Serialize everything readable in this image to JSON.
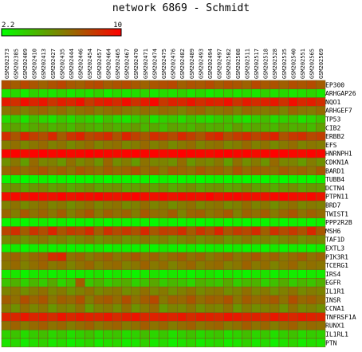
{
  "chart_data": {
    "type": "heatmap",
    "title": "network 6869 - Schmidt",
    "color_scale": {
      "min": 2.2,
      "max": 10,
      "min_label": "2.2",
      "max_label": "10",
      "low_color": "#00ff00",
      "high_color": "#ff0000"
    },
    "columns": [
      "GSM202373",
      "GSM202385",
      "GSM202409",
      "GSM202410",
      "GSM202413",
      "GSM202427",
      "GSM202435",
      "GSM202444",
      "GSM202446",
      "GSM202454",
      "GSM202457",
      "GSM202464",
      "GSM202465",
      "GSM202467",
      "GSM202470",
      "GSM202471",
      "GSM202474",
      "GSM202475",
      "GSM202476",
      "GSM202482",
      "GSM202489",
      "GSM202493",
      "GSM202494",
      "GSM202497",
      "GSM202502",
      "GSM202508",
      "GSM202511",
      "GSM202517",
      "GSM202518",
      "GSM202528",
      "GSM202535",
      "GSM202540",
      "GSM202551",
      "GSM202565",
      "GSM202569"
    ],
    "rows": [
      "EP300",
      "ARHGAP26",
      "NQO1",
      "ARHGEF7",
      "TP53",
      "CIB2",
      "ERBB2",
      "EFS",
      "HNRNPH1",
      "CDKN1A",
      "BARD1",
      "TUBB4",
      "DCTN4",
      "PTPN11",
      "BRD7",
      "TWIST1",
      "PPP2R2B",
      "MSH6",
      "TAF1D",
      "EXTL3",
      "PIK3R1",
      "TCERG1",
      "IRS4",
      "EGFR",
      "IL1R1",
      "INSR",
      "CCNA1",
      "TNFRSF1A",
      "RUNX1",
      "IL1RL1",
      "PTN"
    ],
    "values": [
      [
        7.6,
        7.2,
        7.8,
        7.4,
        7.0,
        7.5,
        7.9,
        7.3,
        7.1,
        7.6,
        7.8,
        7.2,
        7.5,
        7.7,
        7.3,
        7.0,
        7.4,
        7.6,
        7.8,
        7.1,
        7.5,
        7.3,
        7.7,
        7.2,
        7.6,
        7.4,
        7.0,
        7.8,
        7.3,
        7.5,
        7.1,
        7.6,
        7.4,
        7.7,
        7.2
      ],
      [
        3.0,
        3.4,
        2.8,
        3.6,
        3.2,
        3.0,
        3.5,
        2.9,
        3.3,
        3.1,
        3.6,
        2.8,
        3.4,
        3.0,
        3.2,
        3.5,
        2.9,
        3.3,
        3.1,
        3.6,
        3.0,
        3.4,
        2.8,
        3.2,
        3.5,
        3.0,
        3.3,
        2.9,
        3.6,
        3.1,
        3.4,
        3.0,
        3.2,
        3.5,
        2.9
      ],
      [
        9.2,
        8.6,
        9.6,
        8.9,
        9.4,
        8.4,
        9.1,
        8.8,
        9.5,
        8.2,
        9.0,
        9.3,
        8.7,
        9.6,
        8.5,
        9.2,
        9.8,
        8.3,
        9.0,
        8.8,
        9.4,
        8.6,
        9.1,
        8.9,
        9.5,
        8.4,
        9.2,
        8.7,
        9.0,
        9.3,
        8.5,
        9.6,
        8.8,
        9.1,
        8.6
      ],
      [
        6.4,
        6.8,
        6.1,
        6.6,
        6.9,
        6.3,
        6.7,
        6.0,
        6.5,
        6.8,
        6.2,
        6.6,
        6.9,
        6.4,
        6.1,
        6.7,
        6.3,
        6.8,
        6.5,
        6.0,
        6.6,
        6.9,
        6.2,
        6.4,
        6.7,
        6.1,
        6.8,
        6.5,
        6.3,
        6.6,
        6.0,
        6.9,
        6.4,
        6.2,
        6.7
      ],
      [
        3.2,
        3.8,
        3.0,
        4.2,
        3.5,
        3.1,
        3.9,
        3.3,
        4.0,
        3.6,
        3.2,
        4.1,
        3.4,
        3.0,
        3.7,
        4.3,
        3.1,
        3.6,
        3.9,
        3.3,
        4.0,
        3.5,
        3.2,
        3.8,
        4.1,
        3.4,
        3.0,
        3.7,
        4.2,
        3.3,
        3.6,
        3.9,
        3.1,
        3.5,
        4.0
      ],
      [
        4.6,
        5.0,
        4.4,
        4.8,
        5.2,
        4.5,
        4.9,
        4.3,
        5.1,
        4.7,
        4.4,
        5.0,
        4.6,
        4.8,
        5.3,
        4.5,
        4.9,
        4.2,
        5.0,
        4.7,
        4.4,
        5.1,
        4.6,
        4.8,
        4.3,
        5.2,
        4.5,
        4.9,
        4.7,
        4.4,
        5.0,
        4.6,
        4.8,
        4.3,
        5.1
      ],
      [
        8.6,
        7.4,
        8.9,
        8.1,
        7.6,
        8.8,
        7.2,
        8.4,
        9.0,
        7.8,
        8.2,
        8.7,
        7.5,
        8.9,
        8.0,
        7.3,
        8.6,
        8.3,
        7.7,
        8.8,
        8.1,
        7.4,
        8.5,
        8.9,
        7.6,
        8.2,
        8.7,
        7.9,
        8.4,
        9.0,
        7.5,
        8.3,
        8.6,
        7.8,
        8.1
      ],
      [
        6.2,
        6.6,
        5.9,
        6.4,
        6.8,
        6.1,
        6.5,
        5.8,
        6.3,
        6.7,
        6.0,
        6.4,
        6.6,
        5.9,
        6.2,
        6.8,
        6.1,
        6.5,
        5.8,
        6.3,
        6.7,
        6.0,
        6.4,
        6.6,
        5.9,
        6.2,
        6.8,
        6.1,
        6.5,
        5.8,
        6.3,
        6.7,
        6.0,
        6.4,
        6.2
      ],
      [
        9.8,
        9.9,
        9.7,
        9.9,
        10.0,
        9.8,
        9.9,
        9.7,
        9.8,
        10.0,
        9.9,
        9.8,
        9.7,
        9.9,
        10.0,
        9.8,
        9.9,
        9.7,
        9.8,
        10.0,
        9.9,
        9.8,
        9.7,
        9.9,
        10.0,
        9.8,
        9.9,
        9.7,
        9.8,
        10.0,
        9.9,
        9.8,
        9.7,
        9.9,
        9.8
      ],
      [
        5.6,
        6.4,
        5.2,
        6.8,
        5.9,
        6.1,
        5.4,
        6.6,
        5.8,
        6.3,
        5.5,
        6.9,
        5.7,
        6.2,
        5.3,
        6.5,
        5.9,
        6.0,
        5.6,
        6.7,
        5.4,
        6.1,
        5.8,
        6.4,
        5.2,
        6.6,
        5.7,
        6.3,
        5.5,
        6.8,
        5.9,
        6.0,
        5.3,
        6.2,
        5.6
      ],
      [
        6.8,
        7.2,
        6.6,
        7.0,
        7.4,
        6.7,
        7.1,
        6.5,
        7.3,
        6.9,
        6.6,
        7.2,
        6.8,
        7.0,
        7.5,
        6.7,
        7.1,
        6.4,
        7.2,
        6.9,
        6.6,
        7.3,
        6.8,
        7.0,
        6.5,
        7.4,
        6.7,
        7.1,
        6.9,
        6.6,
        7.2,
        6.8,
        7.0,
        6.5,
        7.3
      ],
      [
        2.4,
        2.6,
        2.3,
        2.5,
        2.7,
        2.4,
        2.6,
        2.3,
        2.5,
        2.4,
        2.7,
        2.3,
        2.6,
        2.5,
        2.4,
        2.6,
        2.3,
        2.7,
        2.5,
        2.4,
        2.6,
        2.3,
        2.5,
        2.7,
        2.4,
        2.6,
        2.3,
        2.5,
        2.4,
        2.7,
        2.3,
        2.6,
        2.5,
        2.4,
        2.6
      ],
      [
        5.2,
        5.6,
        4.9,
        5.4,
        5.8,
        5.1,
        5.5,
        4.8,
        5.3,
        5.7,
        5.0,
        5.4,
        5.6,
        4.9,
        5.2,
        5.8,
        5.1,
        5.5,
        4.8,
        5.3,
        5.7,
        5.0,
        5.4,
        5.6,
        4.9,
        5.2,
        5.8,
        5.1,
        5.5,
        4.8,
        5.3,
        5.7,
        5.0,
        5.4,
        5.2
      ],
      [
        9.5,
        9.7,
        9.4,
        9.8,
        9.6,
        9.5,
        9.9,
        9.4,
        9.7,
        9.6,
        9.8,
        9.5,
        9.4,
        9.7,
        9.9,
        9.6,
        9.5,
        9.8,
        9.4,
        9.7,
        9.6,
        9.5,
        9.9,
        9.4,
        9.7,
        9.8,
        9.6,
        9.5,
        9.4,
        9.7,
        9.9,
        9.6,
        9.5,
        9.8,
        9.4
      ],
      [
        6.1,
        6.5,
        5.8,
        6.3,
        6.7,
        6.0,
        6.4,
        5.7,
        6.2,
        6.6,
        5.9,
        6.3,
        6.5,
        5.8,
        6.1,
        6.7,
        6.0,
        6.4,
        5.7,
        6.2,
        6.6,
        5.9,
        6.3,
        6.5,
        5.8,
        6.1,
        6.7,
        6.0,
        6.4,
        5.7,
        6.2,
        6.6,
        5.9,
        6.3,
        6.1
      ],
      [
        6.9,
        6.2,
        7.3,
        6.5,
        7.0,
        6.4,
        7.2,
        6.1,
        6.8,
        7.4,
        6.3,
        7.1,
        6.6,
        7.0,
        6.2,
        7.3,
        6.7,
        6.5,
        7.2,
        6.0,
        6.9,
        7.1,
        6.4,
        6.8,
        7.3,
        6.1,
        7.0,
        6.6,
        7.2,
        6.3,
        6.9,
        7.4,
        6.5,
        7.1,
        6.7
      ],
      [
        2.5,
        2.7,
        2.4,
        2.6,
        2.8,
        2.5,
        2.7,
        2.4,
        2.6,
        2.5,
        2.8,
        2.4,
        2.7,
        2.6,
        2.5,
        2.7,
        2.4,
        2.8,
        2.6,
        2.5,
        2.7,
        2.4,
        2.6,
        2.8,
        2.5,
        2.7,
        2.4,
        2.6,
        2.5,
        2.8,
        2.4,
        2.7,
        2.6,
        2.5,
        2.7
      ],
      [
        7.9,
        8.6,
        7.2,
        8.4,
        7.6,
        8.9,
        7.4,
        8.2,
        7.8,
        8.7,
        7.1,
        8.5,
        7.7,
        8.3,
        7.5,
        8.8,
        7.3,
        8.1,
        7.9,
        8.6,
        7.2,
        8.4,
        7.6,
        8.9,
        7.4,
        8.2,
        7.8,
        8.7,
        7.1,
        8.5,
        7.7,
        8.3,
        7.5,
        8.8,
        7.3
      ],
      [
        5.8,
        6.2,
        5.5,
        6.0,
        6.4,
        5.7,
        6.1,
        5.4,
        5.9,
        6.3,
        5.6,
        6.0,
        6.2,
        5.5,
        5.8,
        6.4,
        5.7,
        6.1,
        5.4,
        5.9,
        6.3,
        5.6,
        6.0,
        6.2,
        5.5,
        5.8,
        6.4,
        5.7,
        6.1,
        5.4,
        5.9,
        6.3,
        5.6,
        6.0,
        5.8
      ],
      [
        2.6,
        2.8,
        2.5,
        2.7,
        2.9,
        2.6,
        2.8,
        2.5,
        2.7,
        2.6,
        2.9,
        2.5,
        2.8,
        2.7,
        2.6,
        2.8,
        2.5,
        2.9,
        2.7,
        2.6,
        2.8,
        2.5,
        2.7,
        2.9,
        2.6,
        2.8,
        2.5,
        2.7,
        2.6,
        2.9,
        2.5,
        2.8,
        2.7,
        2.6,
        2.8
      ],
      [
        6.6,
        7.0,
        6.3,
        6.8,
        7.2,
        8.6,
        8.9,
        6.5,
        6.9,
        6.2,
        6.7,
        7.1,
        6.4,
        6.8,
        7.3,
        6.6,
        7.0,
        6.3,
        6.8,
        7.2,
        6.5,
        6.9,
        6.2,
        6.7,
        7.1,
        6.4,
        6.8,
        7.3,
        6.6,
        7.0,
        6.3,
        6.8,
        7.2,
        6.5,
        6.9
      ],
      [
        6.4,
        6.8,
        6.1,
        6.6,
        7.0,
        6.3,
        6.7,
        6.0,
        6.5,
        6.9,
        6.2,
        6.6,
        6.8,
        6.1,
        6.4,
        7.0,
        6.3,
        6.7,
        6.0,
        6.5,
        6.9,
        6.2,
        6.6,
        6.8,
        6.1,
        6.4,
        7.0,
        6.3,
        6.7,
        6.0,
        6.5,
        6.9,
        6.2,
        6.6,
        6.4
      ],
      [
        2.8,
        3.0,
        2.6,
        2.9,
        3.1,
        2.7,
        3.0,
        2.6,
        2.8,
        2.9,
        3.1,
        2.7,
        3.0,
        2.8,
        2.6,
        2.9,
        3.1,
        2.7,
        3.0,
        2.8,
        2.6,
        2.9,
        3.1,
        2.7,
        3.0,
        2.8,
        2.6,
        2.9,
        3.1,
        2.7,
        3.0,
        2.8,
        2.6,
        2.9,
        2.8
      ],
      [
        4.0,
        4.6,
        3.6,
        4.4,
        3.8,
        4.8,
        3.5,
        4.2,
        7.2,
        3.9,
        4.5,
        3.7,
        4.3,
        4.7,
        3.6,
        4.1,
        4.9,
        3.8,
        4.4,
        4.0,
        3.5,
        4.6,
        4.2,
        3.9,
        4.8,
        3.7,
        4.3,
        4.5,
        3.6,
        4.1,
        4.7,
        3.8,
        4.4,
        4.0,
        4.6
      ],
      [
        6.0,
        6.4,
        5.7,
        6.2,
        6.6,
        5.9,
        6.3,
        5.6,
        6.1,
        6.5,
        5.8,
        6.2,
        6.4,
        5.7,
        6.0,
        6.6,
        5.9,
        6.3,
        5.6,
        6.1,
        6.5,
        5.8,
        6.2,
        6.4,
        5.7,
        6.0,
        6.6,
        5.9,
        6.3,
        5.6,
        6.1,
        6.5,
        5.8,
        6.2,
        6.0
      ],
      [
        7.2,
        6.6,
        7.6,
        6.9,
        7.4,
        6.4,
        7.1,
        6.8,
        7.5,
        6.2,
        7.0,
        7.3,
        6.7,
        7.6,
        6.5,
        7.2,
        7.8,
        6.3,
        7.0,
        6.8,
        7.4,
        6.6,
        7.1,
        6.9,
        7.5,
        6.4,
        7.2,
        6.7,
        7.0,
        7.3,
        6.5,
        7.6,
        6.8,
        7.1,
        6.6
      ],
      [
        6.2,
        5.6,
        6.6,
        5.9,
        6.4,
        5.4,
        6.1,
        5.8,
        6.5,
        5.2,
        6.0,
        6.3,
        5.7,
        6.6,
        5.5,
        6.2,
        6.8,
        5.3,
        6.0,
        5.8,
        6.4,
        5.6,
        6.1,
        5.9,
        6.5,
        5.4,
        6.2,
        5.7,
        6.0,
        6.3,
        5.5,
        6.6,
        5.8,
        6.1,
        5.6
      ],
      [
        9.0,
        8.8,
        9.3,
        8.9,
        9.1,
        8.7,
        9.4,
        8.8,
        9.2,
        9.0,
        8.9,
        9.3,
        8.7,
        9.1,
        9.4,
        8.8,
        9.0,
        9.2,
        8.9,
        9.3,
        8.7,
        9.1,
        9.0,
        8.8,
        9.4,
        9.2,
        8.9,
        9.0,
        8.7,
        9.3,
        9.1,
        8.8,
        9.2,
        9.0,
        8.9
      ],
      [
        6.6,
        7.0,
        6.3,
        6.8,
        7.2,
        6.5,
        6.9,
        6.2,
        6.7,
        7.1,
        6.4,
        6.8,
        7.0,
        6.3,
        6.6,
        7.2,
        6.5,
        6.9,
        6.2,
        6.7,
        7.1,
        6.4,
        6.8,
        7.0,
        6.3,
        6.6,
        7.2,
        6.5,
        6.9,
        6.2,
        6.7,
        7.1,
        6.4,
        6.8,
        6.6
      ],
      [
        3.6,
        4.0,
        3.3,
        3.8,
        4.2,
        3.5,
        3.9,
        3.2,
        3.7,
        4.1,
        3.4,
        3.8,
        4.0,
        3.3,
        3.6,
        4.2,
        3.5,
        3.9,
        3.2,
        3.7,
        4.1,
        3.4,
        3.8,
        4.0,
        3.3,
        3.6,
        4.2,
        3.5,
        3.9,
        3.2,
        3.7,
        4.1,
        3.4,
        3.8,
        3.6
      ],
      [
        3.0,
        3.4,
        2.8,
        3.2,
        3.6,
        2.9,
        3.3,
        2.7,
        3.1,
        3.5,
        2.8,
        3.2,
        3.4,
        2.8,
        3.0,
        3.6,
        2.9,
        3.3,
        2.7,
        3.1,
        3.5,
        2.8,
        3.2,
        3.4,
        2.8,
        3.0,
        3.6,
        2.9,
        3.3,
        2.7,
        3.1,
        3.5,
        2.8,
        3.2,
        3.0
      ]
    ]
  }
}
